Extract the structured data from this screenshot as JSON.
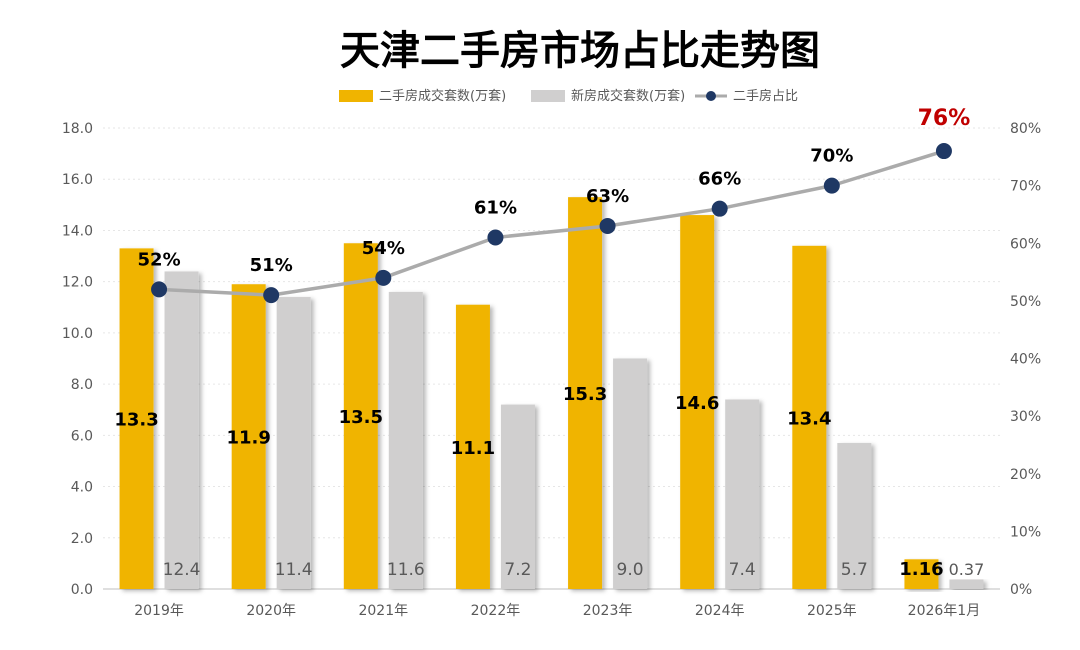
{
  "chart_data": {
    "type": "bar",
    "title": "天津二手房市场占比走势图",
    "categories": [
      "2019年",
      "2020年",
      "2021年",
      "2022年",
      "2023年",
      "2024年",
      "2025年",
      "2026年1月"
    ],
    "series": [
      {
        "name": "二手房成交套数(万套)",
        "type": "bar",
        "axis": "left",
        "color": "#F0B400",
        "values": [
          13.3,
          11.9,
          13.5,
          11.1,
          15.3,
          14.6,
          13.4,
          1.16
        ],
        "labels": [
          "13.3",
          "11.9",
          "13.5",
          "11.1",
          "15.3",
          "14.6",
          "13.4",
          "1.16"
        ]
      },
      {
        "name": "新房成交套数(万套)",
        "type": "bar",
        "axis": "left",
        "color": "#D0CFCF",
        "values": [
          12.4,
          11.4,
          11.6,
          7.2,
          9.0,
          7.4,
          5.7,
          0.37
        ],
        "labels": [
          "12.4",
          "11.4",
          "11.6",
          "7.2",
          "9.0",
          "7.4",
          "5.7",
          "0.37"
        ]
      },
      {
        "name": "二手房占比",
        "type": "line",
        "axis": "right",
        "color": "#ABABAB",
        "marker_color": "#1F3864",
        "values": [
          52,
          51,
          54,
          61,
          63,
          66,
          70,
          76
        ],
        "labels": [
          "52%",
          "51%",
          "54%",
          "61%",
          "63%",
          "66%",
          "70%",
          "76%"
        ],
        "highlight_color": "#C00000"
      }
    ],
    "y_left": {
      "range": [
        0,
        18
      ],
      "ticks": [
        "0.0",
        "2.0",
        "4.0",
        "6.0",
        "8.0",
        "10.0",
        "12.0",
        "14.0",
        "16.0",
        "18.0"
      ]
    },
    "y_right": {
      "range": [
        0,
        80
      ],
      "ticks": [
        "0%",
        "10%",
        "20%",
        "30%",
        "40%",
        "50%",
        "60%",
        "70%",
        "80%"
      ]
    },
    "legend_position": "top-center",
    "grid": true
  }
}
